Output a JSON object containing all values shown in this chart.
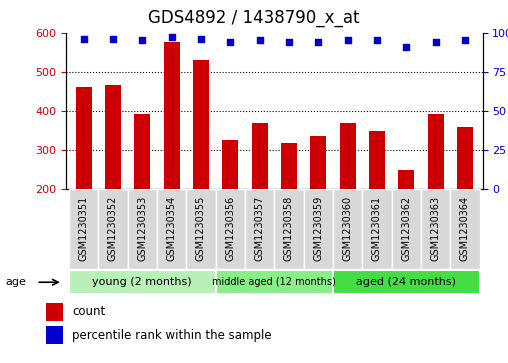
{
  "title": "GDS4892 / 1438790_x_at",
  "samples": [
    "GSM1230351",
    "GSM1230352",
    "GSM1230353",
    "GSM1230354",
    "GSM1230355",
    "GSM1230356",
    "GSM1230357",
    "GSM1230358",
    "GSM1230359",
    "GSM1230360",
    "GSM1230361",
    "GSM1230362",
    "GSM1230363",
    "GSM1230364"
  ],
  "counts": [
    460,
    465,
    392,
    575,
    530,
    325,
    368,
    318,
    334,
    368,
    347,
    248,
    392,
    357
  ],
  "percentiles": [
    96,
    96,
    95,
    97,
    96,
    94,
    95,
    94,
    94,
    95,
    95,
    91,
    94,
    95
  ],
  "ylim_left": [
    200,
    600
  ],
  "ylim_right": [
    0,
    100
  ],
  "yticks_left": [
    200,
    300,
    400,
    500,
    600
  ],
  "yticks_right": [
    0,
    25,
    50,
    75,
    100
  ],
  "bar_color": "#cc0000",
  "dot_color": "#0000cc",
  "groups": [
    {
      "label": "young (2 months)",
      "start": 0,
      "end": 5
    },
    {
      "label": "middle aged (12 months)",
      "start": 5,
      "end": 9
    },
    {
      "label": "aged (24 months)",
      "start": 9,
      "end": 14
    }
  ],
  "group_colors": [
    "#b8f0b8",
    "#88ee88",
    "#44dd44"
  ],
  "legend_count_label": "count",
  "legend_percentile_label": "percentile rank within the sample",
  "title_fontsize": 12,
  "tick_fontsize": 8,
  "group_fontsize": 8,
  "sample_fontsize": 7
}
